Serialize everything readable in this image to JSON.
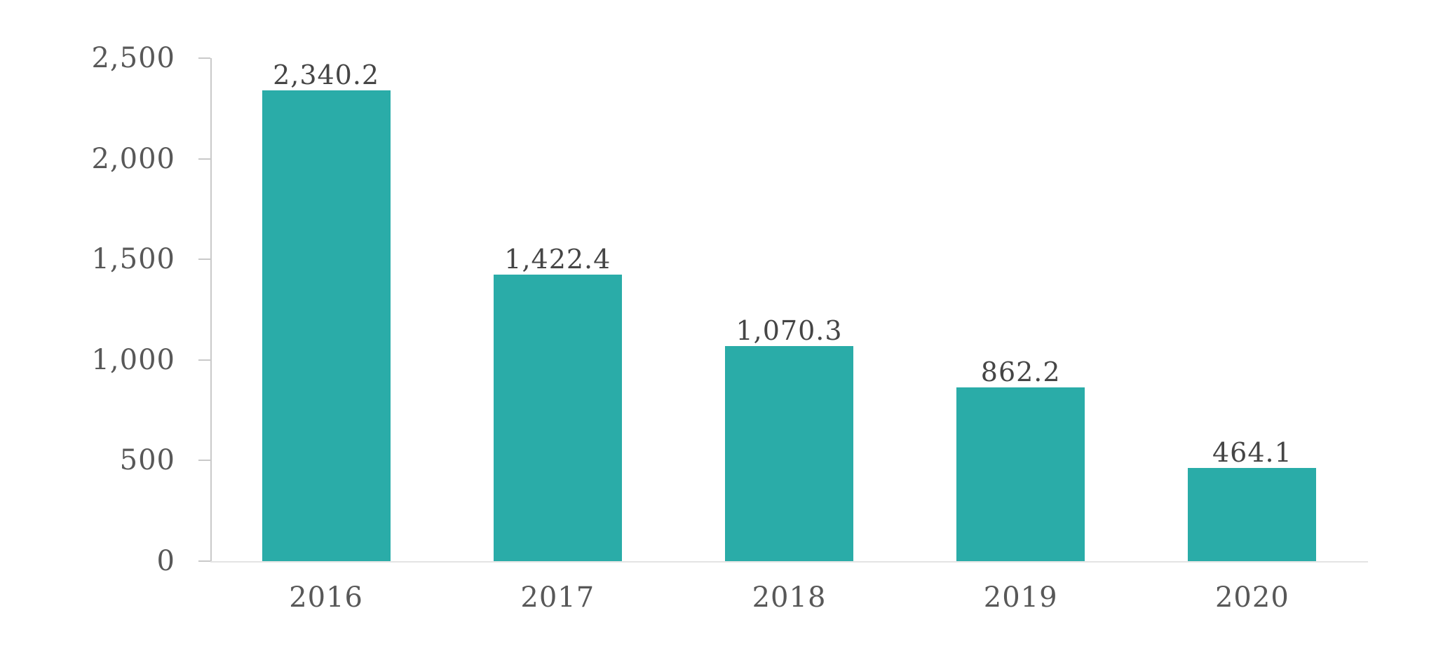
{
  "chart_data": {
    "type": "bar",
    "title": "",
    "xlabel": "",
    "ylabel": "",
    "categories": [
      "2016",
      "2017",
      "2018",
      "2019",
      "2020"
    ],
    "values": [
      2340.2,
      1422.4,
      1070.3,
      862.2,
      464.1
    ],
    "value_labels": [
      "2,340.2",
      "1,422.4",
      "1,070.3",
      "862.2",
      "464.1"
    ],
    "ylim": [
      0,
      2500
    ],
    "y_ticks": [
      0,
      500,
      1000,
      1500,
      2000,
      2500
    ],
    "y_tick_labels": [
      "0",
      "500",
      "1,000",
      "1,500",
      "2,000",
      "2,500"
    ],
    "grid": false,
    "legend": false,
    "colors": {
      "bar": "#2aaca8",
      "value_label_text": "#454545",
      "axis_label_text": "#585858",
      "axis_line": "#c9c9c9",
      "baseline": "#e4e4e4",
      "background": "#ffffff"
    }
  }
}
